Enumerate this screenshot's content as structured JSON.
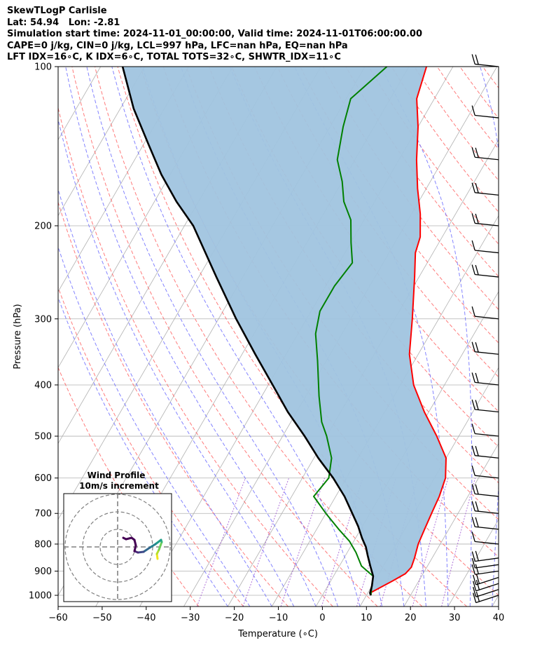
{
  "header": {
    "line1": "SkewTLogP Carlisle",
    "line2": "Lat: 54.94   Lon: -2.81",
    "line3": "Simulation start time: 2024-11-01_00:00:00, Valid time: 2024-11-01T06:00:00.00",
    "line4": "CAPE=0 j/kg, CIN=0 j/kg, LCL=997 hPa, LFC=nan hPa, EQ=nan hPa",
    "line5": "LFT IDX=16∘C, K IDX=6∘C, TOTAL TOTS=32∘C, SHWTR_IDX=11∘C"
  },
  "chart_data": {
    "type": "line",
    "title": "SkewTLogP Carlisle",
    "xlabel": "Temperature (∘C)",
    "ylabel": "Pressure (hPa)",
    "xlim": [
      -60,
      40
    ],
    "ylim": [
      1050,
      100
    ],
    "y_scale": "log",
    "skew": "skew-T log-P",
    "x_ticks": [
      "−60",
      "−50",
      "−40",
      "−30",
      "−20",
      "−10",
      "0",
      "10",
      "20",
      "30",
      "40"
    ],
    "y_ticks": [
      "100",
      "200",
      "300",
      "400",
      "500",
      "600",
      "700",
      "800",
      "900",
      "1000"
    ],
    "grid": true,
    "colors": {
      "temperature": "#ff0000",
      "dewpoint": "#008000",
      "parcel": "#000000",
      "cape_shade": "#a0c4df",
      "dry_adiabat": "#ff6464",
      "moist_adiabat": "#6e6eff",
      "mixing_ratio": "#9b4fd0",
      "isotherm": "#b0b0b0"
    },
    "series": [
      {
        "name": "Temperature",
        "points": [
          [
            11,
            1000
          ],
          [
            10.5,
            990
          ],
          [
            14,
            940
          ],
          [
            16,
            910
          ],
          [
            16.5,
            885
          ],
          [
            16,
            850
          ],
          [
            15,
            800
          ],
          [
            14.5,
            750
          ],
          [
            14,
            700
          ],
          [
            13.5,
            650
          ],
          [
            12.5,
            600
          ],
          [
            10,
            550
          ],
          [
            5,
            500
          ],
          [
            -1,
            450
          ],
          [
            -7,
            400
          ],
          [
            -12,
            350
          ],
          [
            -16,
            300
          ],
          [
            -21,
            250
          ],
          [
            -24,
            225
          ],
          [
            -25,
            210
          ],
          [
            -28,
            190
          ],
          [
            -32,
            170
          ],
          [
            -36,
            150
          ],
          [
            -40,
            130
          ],
          [
            -44,
            115
          ],
          [
            -46,
            100
          ]
        ]
      },
      {
        "name": "Dewpoint",
        "points": [
          [
            11,
            1000
          ],
          [
            10,
            960
          ],
          [
            9,
            920
          ],
          [
            5,
            880
          ],
          [
            2,
            830
          ],
          [
            -1,
            790
          ],
          [
            -5,
            750
          ],
          [
            -10,
            700
          ],
          [
            -15,
            650
          ],
          [
            -14,
            600
          ],
          [
            -16,
            550
          ],
          [
            -20,
            500
          ],
          [
            -23,
            470
          ],
          [
            -27,
            420
          ],
          [
            -32,
            360
          ],
          [
            -36,
            320
          ],
          [
            -38,
            290
          ],
          [
            -38,
            260
          ],
          [
            -37,
            235
          ],
          [
            -40,
            215
          ],
          [
            -43,
            195
          ],
          [
            -47,
            180
          ],
          [
            -50,
            165
          ],
          [
            -54,
            150
          ],
          [
            -57,
            130
          ],
          [
            -59,
            115
          ],
          [
            -55,
            100
          ]
        ]
      },
      {
        "name": "Parcel",
        "points": [
          [
            11,
            1000
          ],
          [
            10.5,
            990
          ],
          [
            10,
            960
          ],
          [
            9,
            920
          ],
          [
            7,
            880
          ],
          [
            5,
            840
          ],
          [
            3.5,
            810
          ],
          [
            1.5,
            780
          ],
          [
            -1,
            740
          ],
          [
            -4,
            700
          ],
          [
            -8,
            650
          ],
          [
            -13,
            600
          ],
          [
            -19,
            550
          ],
          [
            -25,
            500
          ],
          [
            -32,
            450
          ],
          [
            -39,
            400
          ],
          [
            -47,
            350
          ],
          [
            -56,
            300
          ],
          [
            -66,
            250
          ],
          [
            -78,
            200
          ],
          [
            -85,
            180
          ],
          [
            -92,
            160
          ],
          [
            -99,
            140
          ],
          [
            -107,
            120
          ],
          [
            -115,
            100
          ]
        ]
      }
    ],
    "wind_barbs_pressure": [
      1000,
      975,
      950,
      925,
      900,
      875,
      850,
      800,
      750,
      700,
      650,
      600,
      550,
      500,
      450,
      400,
      350,
      300,
      250,
      225,
      200,
      175,
      150,
      125,
      100
    ],
    "hodograph": {
      "title": "Wind Profile",
      "subtitle": "10m/s increment",
      "rings": 3
    }
  }
}
